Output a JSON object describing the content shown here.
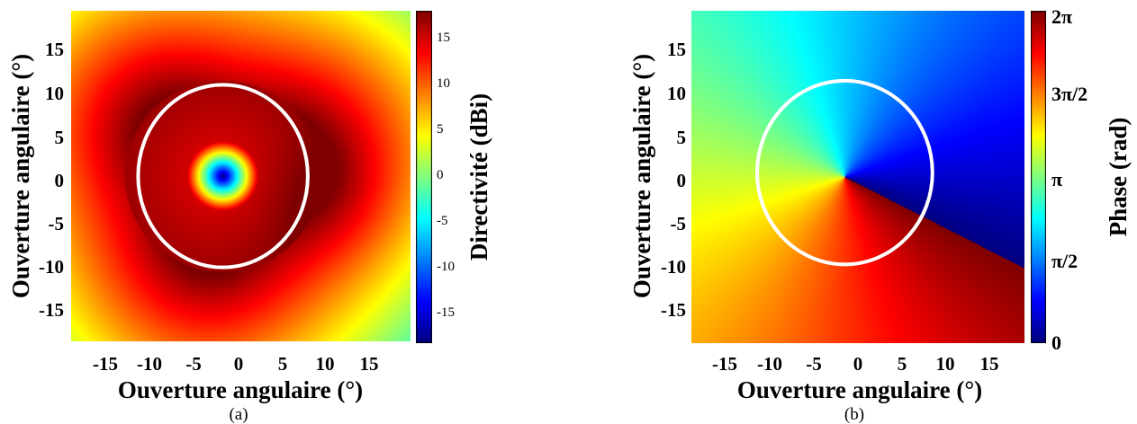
{
  "chart_data": [
    {
      "type": "heatmap",
      "id": "a",
      "subfigure_label": "(a)",
      "xlabel": "Ouverture angulaire (°)",
      "ylabel": "Ouverture angulaire (°)",
      "xlim": [
        -19,
        19
      ],
      "ylim": [
        -19,
        19
      ],
      "xticks": [
        "-15",
        "-10",
        "-5",
        "0",
        "5",
        "10",
        "15"
      ],
      "yticks": [
        "15",
        "10",
        "5",
        "0",
        "-5",
        "-10",
        "-15"
      ],
      "colorbar": {
        "label": "Directivité (dBi)",
        "range": [
          -19,
          17
        ],
        "ticks": [
          "15",
          "10",
          "5",
          "0",
          "-5",
          "-10",
          "-15"
        ],
        "colormap": "jet"
      },
      "field": {
        "description": "ring-shaped directivity pattern",
        "null_center": [
          -2,
          0
        ],
        "null_value": -19,
        "peak_value": 17,
        "ring_max_region": [
          10,
          -3
        ],
        "edge_value": 0
      },
      "circle": {
        "center": [
          -2,
          0
        ],
        "radius_x": 9.5,
        "radius_y": 10.5,
        "color": "#ffffff"
      },
      "colors": {
        "circle": "#ffffff"
      }
    },
    {
      "type": "heatmap",
      "id": "b",
      "subfigure_label": "(b)",
      "xlabel": "Ouverture angulaire (°)",
      "ylabel": "Ouverture angulaire (°)",
      "xlim": [
        -19,
        19
      ],
      "ylim": [
        -19,
        19
      ],
      "xticks": [
        "-15",
        "-10",
        "-5",
        "0",
        "5",
        "10",
        "15"
      ],
      "yticks": [
        "15",
        "10",
        "5",
        "0",
        "-5",
        "-10",
        "-15"
      ],
      "colorbar": {
        "label": "Phase (rad)",
        "range": [
          0,
          6.2832
        ],
        "ticks": [
          "2π",
          "3π/2",
          "π",
          "π/2",
          "0"
        ],
        "colormap": "jet"
      },
      "field": {
        "description": "helical phase vortex",
        "vortex_center": [
          -1.5,
          0
        ],
        "topological_charge": 1
      },
      "circle": {
        "center": [
          -1.5,
          0.5
        ],
        "radius_x": 10,
        "radius_y": 10.5,
        "color": "#ffffff"
      },
      "colors": {
        "circle": "#ffffff"
      }
    }
  ]
}
